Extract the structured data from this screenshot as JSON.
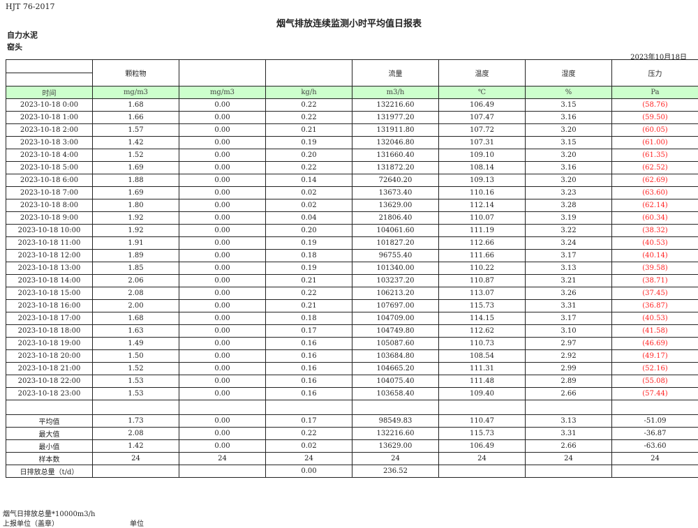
{
  "standard": "HJT  76-2017",
  "title": "烟气排放连续监测小时平均值日报表",
  "company": "自力水泥",
  "site": "窑头",
  "date": "2023年10月18日",
  "colors": {
    "units_bg": "#ccffcc",
    "negative": "#ff2222"
  },
  "header": [
    "",
    "颗粒物",
    "",
    "",
    "流量",
    "温度",
    "湿度",
    "压力"
  ],
  "units": [
    "时间",
    "mg/m3",
    "mg/m3",
    "kg/h",
    "m3/h",
    "℃",
    "%",
    "Pa"
  ],
  "rows": [
    [
      "2023-10-18 0:00",
      "1.68",
      "0.00",
      "0.22",
      "132216.60",
      "106.49",
      "3.15",
      "(58.76)"
    ],
    [
      "2023-10-18 1:00",
      "1.66",
      "0.00",
      "0.22",
      "131977.20",
      "107.47",
      "3.16",
      "(59.50)"
    ],
    [
      "2023-10-18 2:00",
      "1.57",
      "0.00",
      "0.21",
      "131911.80",
      "107.72",
      "3.20",
      "(60.05)"
    ],
    [
      "2023-10-18 3:00",
      "1.42",
      "0.00",
      "0.19",
      "132046.80",
      "107.31",
      "3.15",
      "(61.00)"
    ],
    [
      "2023-10-18 4:00",
      "1.52",
      "0.00",
      "0.20",
      "131660.40",
      "109.10",
      "3.20",
      "(61.35)"
    ],
    [
      "2023-10-18 5:00",
      "1.69",
      "0.00",
      "0.22",
      "131872.20",
      "108.14",
      "3.16",
      "(62.52)"
    ],
    [
      "2023-10-18 6:00",
      "1.88",
      "0.00",
      "0.14",
      "72640.20",
      "109.13",
      "3.20",
      "(62.69)"
    ],
    [
      "2023-10-18 7:00",
      "1.69",
      "0.00",
      "0.02",
      "13673.40",
      "110.16",
      "3.23",
      "(63.60)"
    ],
    [
      "2023-10-18 8:00",
      "1.80",
      "0.00",
      "0.02",
      "13629.00",
      "112.14",
      "3.28",
      "(62.14)"
    ],
    [
      "2023-10-18 9:00",
      "1.92",
      "0.00",
      "0.04",
      "21806.40",
      "110.07",
      "3.19",
      "(60.34)"
    ],
    [
      "2023-10-18 10:00",
      "1.92",
      "0.00",
      "0.20",
      "104061.60",
      "111.19",
      "3.22",
      "(38.32)"
    ],
    [
      "2023-10-18 11:00",
      "1.91",
      "0.00",
      "0.19",
      "101827.20",
      "112.66",
      "3.24",
      "(40.53)"
    ],
    [
      "2023-10-18 12:00",
      "1.89",
      "0.00",
      "0.18",
      "96755.40",
      "111.66",
      "3.17",
      "(40.14)"
    ],
    [
      "2023-10-18 13:00",
      "1.85",
      "0.00",
      "0.19",
      "101340.00",
      "110.22",
      "3.13",
      "(39.58)"
    ],
    [
      "2023-10-18 14:00",
      "2.06",
      "0.00",
      "0.21",
      "103237.20",
      "110.87",
      "3.21",
      "(38.71)"
    ],
    [
      "2023-10-18 15:00",
      "2.08",
      "0.00",
      "0.22",
      "106213.20",
      "113.07",
      "3.26",
      "(37.45)"
    ],
    [
      "2023-10-18 16:00",
      "2.00",
      "0.00",
      "0.21",
      "107697.00",
      "115.73",
      "3.31",
      "(36.87)"
    ],
    [
      "2023-10-18 17:00",
      "1.68",
      "0.00",
      "0.18",
      "104709.00",
      "114.15",
      "3.17",
      "(40.53)"
    ],
    [
      "2023-10-18 18:00",
      "1.63",
      "0.00",
      "0.17",
      "104749.80",
      "112.62",
      "3.10",
      "(41.58)"
    ],
    [
      "2023-10-18 19:00",
      "1.49",
      "0.00",
      "0.16",
      "105087.60",
      "110.73",
      "2.97",
      "(46.69)"
    ],
    [
      "2023-10-18 20:00",
      "1.50",
      "0.00",
      "0.16",
      "103684.80",
      "108.54",
      "2.92",
      "(49.17)"
    ],
    [
      "2023-10-18 21:00",
      "1.52",
      "0.00",
      "0.16",
      "104665.20",
      "111.31",
      "2.99",
      "(52.16)"
    ],
    [
      "2023-10-18 22:00",
      "1.53",
      "0.00",
      "0.16",
      "104075.40",
      "111.48",
      "2.89",
      "(55.08)"
    ],
    [
      "2023-10-18 23:00",
      "1.53",
      "0.00",
      "0.16",
      "103658.40",
      "109.40",
      "2.66",
      "(57.44)"
    ]
  ],
  "stats": [
    [
      "平均值",
      "1.73",
      "0.00",
      "0.17",
      "98549.83",
      "110.47",
      "3.13",
      "-51.09"
    ],
    [
      "最大值",
      "2.08",
      "0.00",
      "0.22",
      "132216.60",
      "115.73",
      "3.31",
      "-36.87"
    ],
    [
      "最小值",
      "1.42",
      "0.00",
      "0.02",
      "13629.00",
      "106.49",
      "2.66",
      "-63.60"
    ],
    [
      "样本数",
      "24",
      "24",
      "24",
      "24",
      "24",
      "24",
      "24"
    ],
    [
      "日排放总量（t/d）",
      "",
      "",
      "0.00",
      "236.52",
      "",
      "",
      ""
    ]
  ],
  "footer": {
    "note": "烟气日排放总量*10000m3/h",
    "report_unit_label": "上报单位（盖章）",
    "unit_label": "单位"
  }
}
